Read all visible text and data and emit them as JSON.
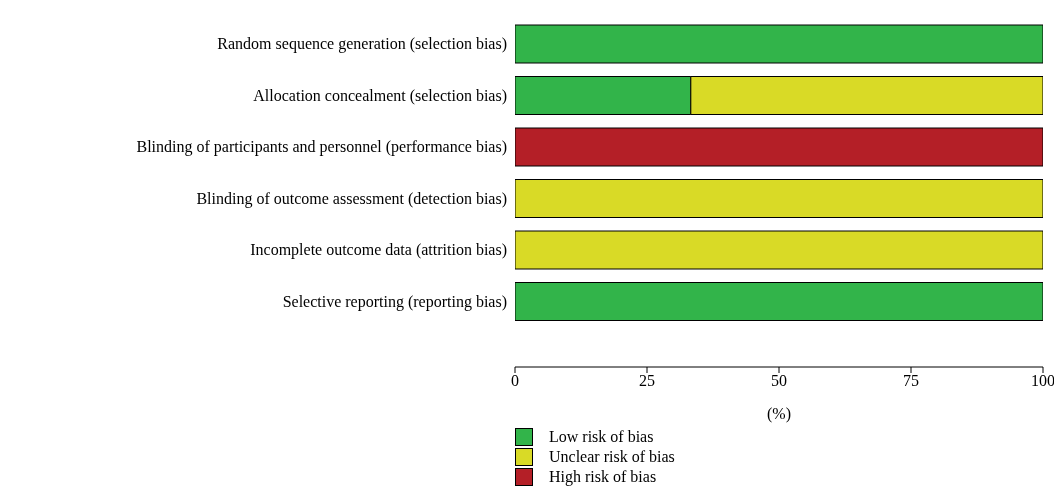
{
  "chart_data": {
    "type": "bar",
    "orientation": "horizontal",
    "stacked": true,
    "xlabel": "(%)",
    "categories": [
      "Random sequence generation (selection bias)",
      "Allocation concealment (selection bias)",
      "Blinding of participants and personnel (performance bias)",
      "Blinding of outcome assessment (detection bias)",
      "Incomplete outcome data (attrition bias)",
      "Selective reporting (reporting bias)"
    ],
    "series": [
      {
        "name": "Low risk of bias",
        "color": "#32b44a",
        "values": [
          100,
          33.3,
          0,
          0,
          0,
          100
        ]
      },
      {
        "name": "Unclear risk of bias",
        "color": "#d9da26",
        "values": [
          0,
          66.7,
          0,
          100,
          100,
          0
        ]
      },
      {
        "name": "High risk of bias",
        "color": "#b41f27",
        "values": [
          0,
          0,
          100,
          0,
          0,
          0
        ]
      }
    ],
    "xlim": [
      0,
      100
    ],
    "xticks": [
      0,
      25,
      50,
      75,
      100
    ],
    "grid": false,
    "legend": "bottom"
  }
}
